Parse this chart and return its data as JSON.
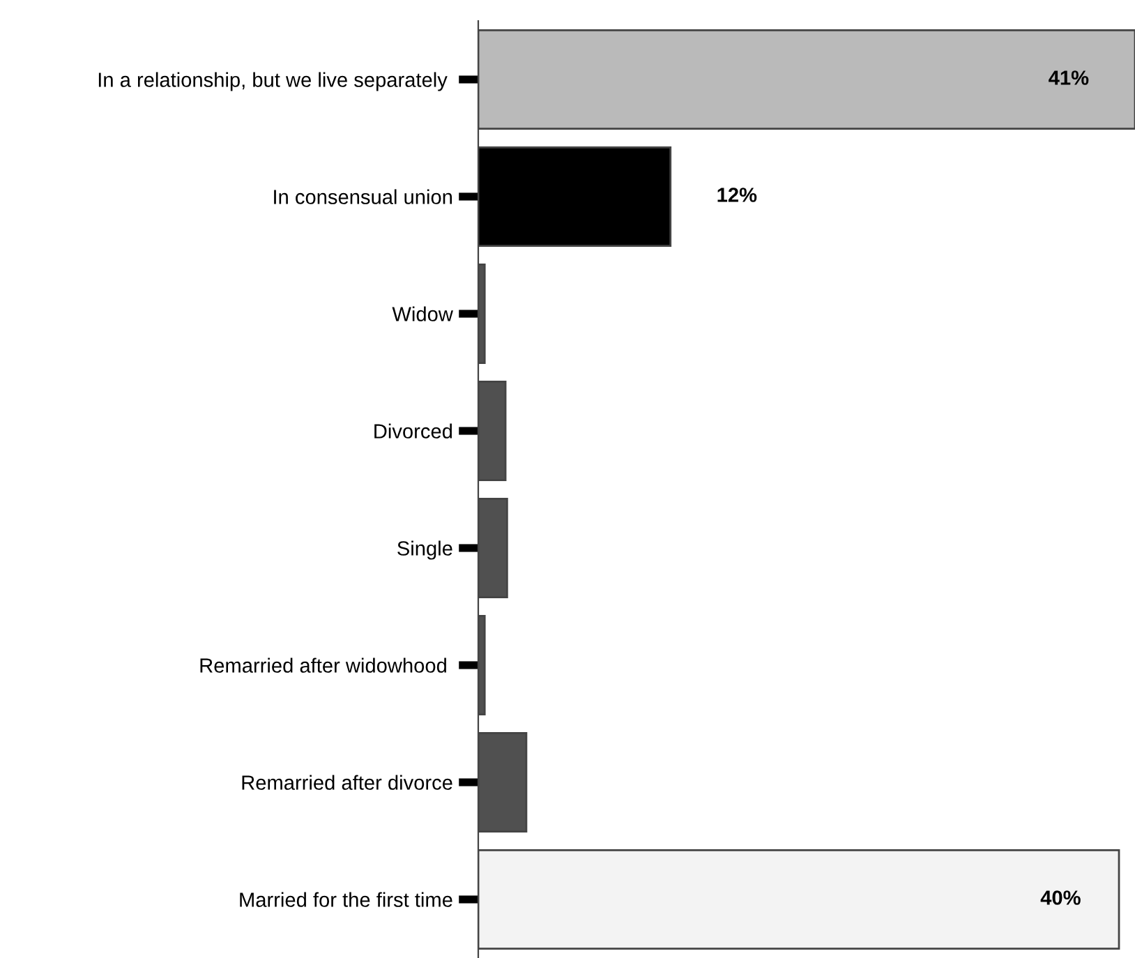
{
  "chart_data": {
    "type": "bar",
    "orientation": "horizontal",
    "categories": [
      "In a relationship, but we live separately ",
      "In consensual union",
      "Widow",
      "Divorced",
      "Single",
      "Remarried after widowhood ",
      "Remarried after divorce",
      "Married for the first time"
    ],
    "values": [
      41,
      12,
      0.4,
      1.7,
      1.8,
      0.4,
      3.0,
      40
    ],
    "colors": [
      "#bababa",
      "#000000",
      "#505050",
      "#505050",
      "#505050",
      "#505050",
      "#505050",
      "#f3f3f3"
    ],
    "value_labels": [
      "41%",
      "12%",
      null,
      null,
      null,
      null,
      null,
      "40%"
    ],
    "grid": false,
    "legend": false
  }
}
